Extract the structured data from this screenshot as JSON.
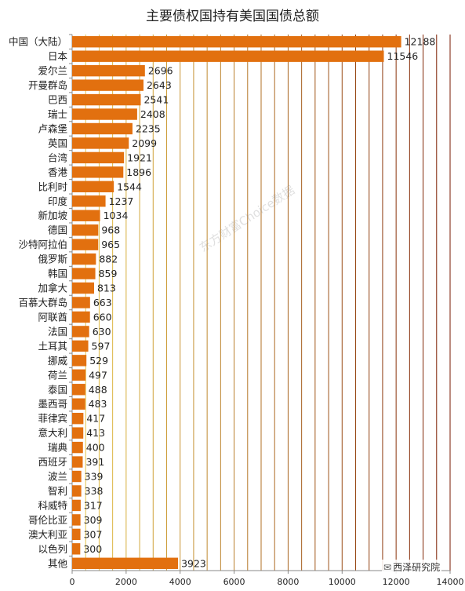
{
  "title": "主要债权国持有美国国债总额",
  "watermark": "东方财富Choice数据",
  "brand": {
    "icon": "wechat-icon",
    "text": "西泽研究院"
  },
  "colors": {
    "bar": "#E2700F",
    "grid_light": "#E8C84A",
    "grid_dark": "#7A1A00"
  },
  "chart_data": {
    "type": "bar",
    "orientation": "horizontal",
    "categories": [
      "中国（大陆）",
      "日本",
      "爱尔兰",
      "开曼群岛",
      "巴西",
      "瑞士",
      "卢森堡",
      "英国",
      "台湾",
      "香港",
      "比利时",
      "印度",
      "新加坡",
      "德国",
      "沙特阿拉伯",
      "俄罗斯",
      "韩国",
      "加拿大",
      "百慕大群岛",
      "阿联酋",
      "法国",
      "土耳其",
      "挪威",
      "荷兰",
      "泰国",
      "墨西哥",
      "菲律宾",
      "意大利",
      "瑞典",
      "西班牙",
      "波兰",
      "智利",
      "科威特",
      "哥伦比亚",
      "澳大利亚",
      "以色列",
      "其他"
    ],
    "values": [
      12188,
      11546,
      2696,
      2643,
      2541,
      2408,
      2235,
      2099,
      1921,
      1896,
      1544,
      1237,
      1034,
      968,
      965,
      882,
      859,
      813,
      663,
      660,
      630,
      597,
      529,
      497,
      488,
      483,
      417,
      413,
      400,
      391,
      339,
      338,
      317,
      309,
      307,
      300,
      3923
    ],
    "xlim": [
      0,
      14000
    ],
    "xticks": [
      0,
      2000,
      4000,
      6000,
      8000,
      10000,
      12000,
      14000
    ],
    "grid": true
  }
}
